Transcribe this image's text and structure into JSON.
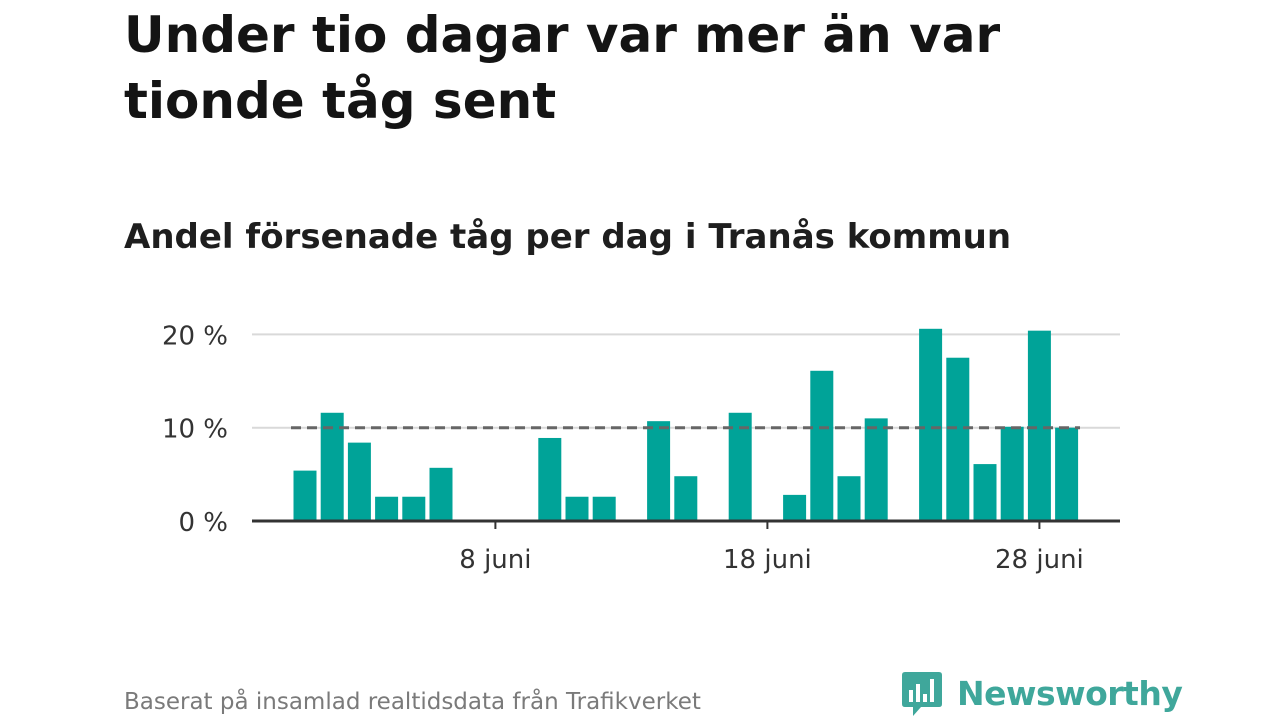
{
  "header": {
    "title": "Under tio dagar var mer än var tionde tåg sent",
    "subtitle": "Andel försenade tåg per dag i Tranås kommun"
  },
  "footer": {
    "source": "Baserat på insamlad realtidsdata från Trafikverket",
    "brand": "Newsworthy"
  },
  "colors": {
    "bar": "#00a398",
    "reference_line": "#666666",
    "grid": "#d9d9d9",
    "axis": "#333333",
    "brand": "#3fa79b"
  },
  "icons": {
    "brand_logo": "bar-chart-speech-bubble-icon"
  },
  "chart_data": {
    "type": "bar",
    "title": "Andel försenade tåg per dag i Tranås kommun",
    "x": [
      1,
      2,
      3,
      4,
      5,
      6,
      7,
      8,
      9,
      10,
      11,
      12,
      13,
      14,
      15,
      16,
      17,
      18,
      19,
      20,
      21,
      22,
      23,
      24,
      25,
      26,
      27,
      28,
      29,
      30
    ],
    "values": [
      5.4,
      11.6,
      8.4,
      2.6,
      2.6,
      5.7,
      0,
      0,
      0,
      8.9,
      2.6,
      2.6,
      0,
      10.7,
      4.8,
      0,
      11.6,
      0,
      2.8,
      16.1,
      4.8,
      11.0,
      0,
      20.6,
      17.5,
      6.1,
      10.1,
      20.4,
      10.0,
      0
    ],
    "value_unit": "%",
    "x_ticks": [
      {
        "x": 8,
        "label": "8 juni"
      },
      {
        "x": 18,
        "label": "18 juni"
      },
      {
        "x": 28,
        "label": "28 juni"
      }
    ],
    "y_ticks": [
      {
        "value": 0,
        "label": "0 %"
      },
      {
        "value": 10,
        "label": "10 %"
      },
      {
        "value": 20,
        "label": "20 %"
      }
    ],
    "ylim": [
      0,
      20.6
    ],
    "reference_line": {
      "value": 10,
      "style": "dashed"
    },
    "grid": true,
    "legend": "none"
  }
}
